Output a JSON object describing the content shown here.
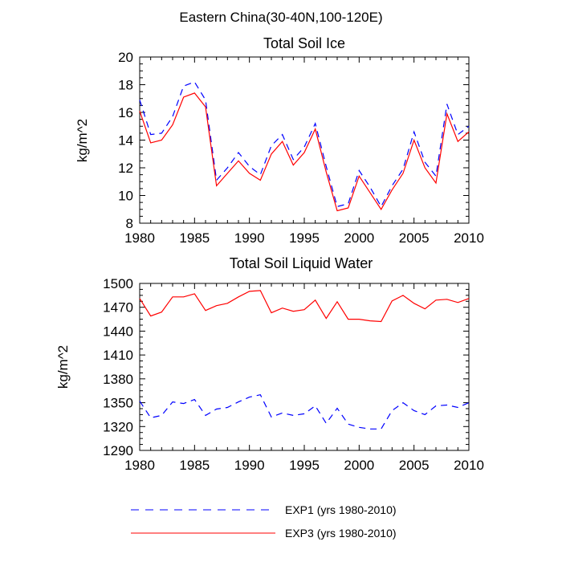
{
  "figure_title": "Eastern China(30-40N,100-120E)",
  "legend": [
    {
      "label": "EXP1 (yrs 1980-2010)",
      "color": "#0000ff",
      "dash": "dashed"
    },
    {
      "label": "EXP3 (yrs 1980-2010)",
      "color": "#ff0000",
      "dash": "solid"
    }
  ],
  "chart_data": [
    {
      "type": "line",
      "title": "Total Soil Ice",
      "xlabel": "",
      "ylabel": "kg/m^2",
      "xlim": [
        1980,
        2010
      ],
      "ylim": [
        8,
        20
      ],
      "xticks": [
        1980,
        1985,
        1990,
        1995,
        2000,
        2005,
        2010
      ],
      "yticks": [
        8,
        10,
        12,
        14,
        16,
        18,
        20
      ],
      "x": [
        1980,
        1981,
        1982,
        1983,
        1984,
        1985,
        1986,
        1987,
        1988,
        1989,
        1990,
        1991,
        1992,
        1993,
        1994,
        1995,
        1996,
        1997,
        1998,
        1999,
        2000,
        2001,
        2002,
        2003,
        2004,
        2005,
        2006,
        2007,
        2008,
        2009,
        2010
      ],
      "series": [
        {
          "name": "EXP1 (yrs 1980-2010)",
          "color": "#0000ff",
          "dash": "dashed",
          "values": [
            16.9,
            14.4,
            14.5,
            15.7,
            17.9,
            18.2,
            16.9,
            11.1,
            12.0,
            13.1,
            12.1,
            11.5,
            13.6,
            14.4,
            12.6,
            13.5,
            15.2,
            12.1,
            9.2,
            9.4,
            11.8,
            10.6,
            9.2,
            10.7,
            11.9,
            14.6,
            12.4,
            11.4,
            16.6,
            14.4,
            15.0
          ]
        },
        {
          "name": "EXP3 (yrs 1980-2010)",
          "color": "#ff0000",
          "dash": "solid",
          "values": [
            16.1,
            13.8,
            14.0,
            15.1,
            17.1,
            17.4,
            16.4,
            10.7,
            11.6,
            12.5,
            11.6,
            11.1,
            13.0,
            13.9,
            12.2,
            13.1,
            14.8,
            11.7,
            8.9,
            9.1,
            11.4,
            10.2,
            9.0,
            10.4,
            11.6,
            14.0,
            12.0,
            10.9,
            15.9,
            13.9,
            14.6
          ]
        }
      ]
    },
    {
      "type": "line",
      "title": "Total Soil Liquid Water",
      "xlabel": "",
      "ylabel": "kg/m^2",
      "xlim": [
        1980,
        2010
      ],
      "ylim": [
        1290,
        1500
      ],
      "xticks": [
        1980,
        1985,
        1990,
        1995,
        2000,
        2005,
        2010
      ],
      "yticks": [
        1290,
        1320,
        1350,
        1380,
        1410,
        1440,
        1470,
        1500
      ],
      "x": [
        1980,
        1981,
        1982,
        1983,
        1984,
        1985,
        1986,
        1987,
        1988,
        1989,
        1990,
        1991,
        1992,
        1993,
        1994,
        1995,
        1996,
        1997,
        1998,
        1999,
        2000,
        2001,
        2002,
        2003,
        2004,
        2005,
        2006,
        2007,
        2008,
        2009,
        2010
      ],
      "series": [
        {
          "name": "EXP1 (yrs 1980-2010)",
          "color": "#0000ff",
          "dash": "dashed",
          "values": [
            1352,
            1331,
            1334,
            1351,
            1349,
            1354,
            1334,
            1342,
            1344,
            1351,
            1357,
            1360,
            1332,
            1337,
            1334,
            1336,
            1346,
            1324,
            1343,
            1323,
            1319,
            1317,
            1317,
            1340,
            1350,
            1340,
            1335,
            1346,
            1347,
            1344,
            1350
          ]
        },
        {
          "name": "EXP3 (yrs 1980-2010)",
          "color": "#ff0000",
          "dash": "solid",
          "values": [
            1481,
            1459,
            1464,
            1483,
            1483,
            1487,
            1466,
            1472,
            1475,
            1483,
            1490,
            1491,
            1463,
            1469,
            1465,
            1467,
            1479,
            1456,
            1477,
            1455,
            1455,
            1453,
            1452,
            1478,
            1485,
            1475,
            1468,
            1479,
            1480,
            1476,
            1481
          ]
        }
      ]
    }
  ]
}
